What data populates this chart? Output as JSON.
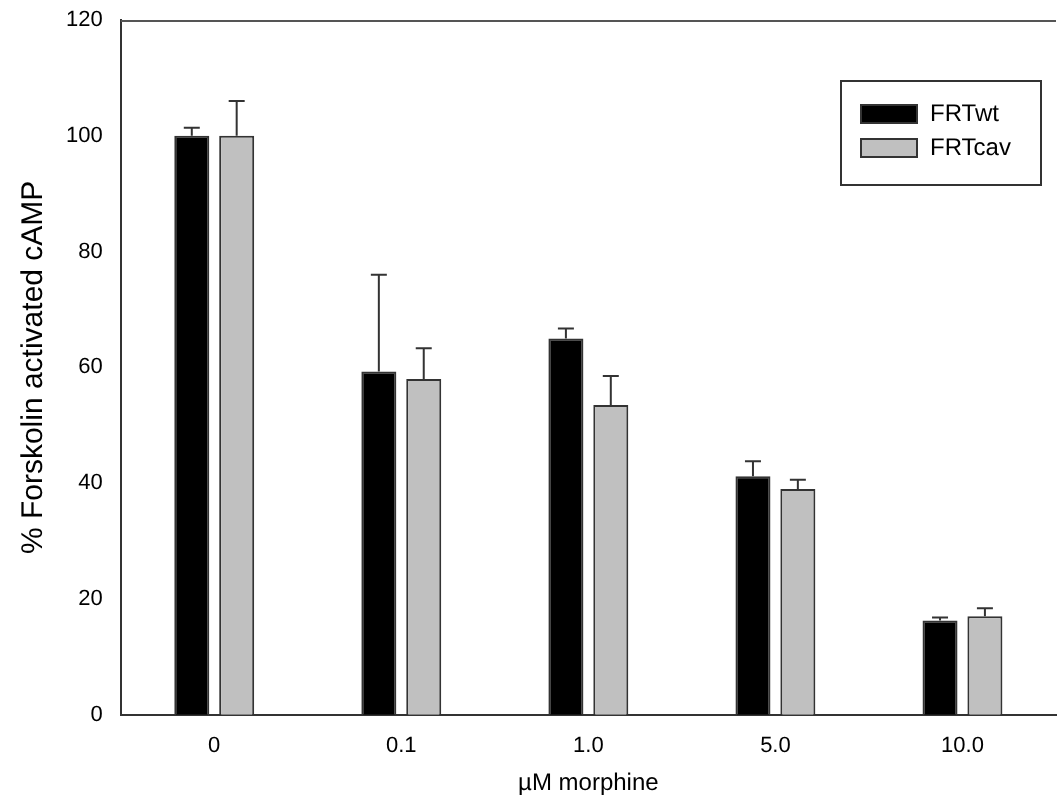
{
  "chart_data": {
    "type": "bar",
    "xlabel": "µM morphine",
    "ylabel": "% Forskolin activated cAMP",
    "categories": [
      "0",
      "0.1",
      "1.0",
      "5.0",
      "10.0"
    ],
    "series": [
      {
        "name": "FRTwt",
        "color": "#000000",
        "values": [
          100,
          59.3,
          65,
          41.2,
          16.3
        ],
        "errors": [
          [
            100,
            101.4
          ],
          [
            59.3,
            76
          ],
          [
            65,
            66.7
          ],
          [
            41.2,
            43.8
          ],
          [
            16.3,
            16.8
          ]
        ]
      },
      {
        "name": "FRTcav",
        "color": "#c0c0c0",
        "values": [
          100,
          58,
          53.5,
          39,
          17
        ],
        "errors": [
          [
            100,
            106
          ],
          [
            58,
            63.3
          ],
          [
            53.5,
            58.5
          ],
          [
            39,
            40.6
          ],
          [
            17,
            18.4
          ]
        ]
      }
    ],
    "ylim": [
      0,
      120
    ],
    "yticks": [
      0,
      20,
      40,
      60,
      80,
      100,
      120
    ],
    "grid": false,
    "legend": "top right"
  }
}
